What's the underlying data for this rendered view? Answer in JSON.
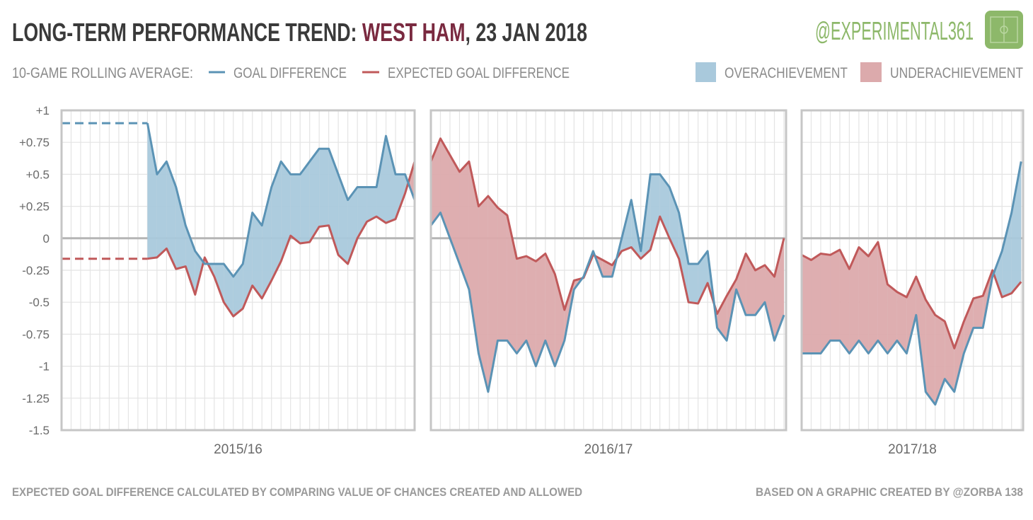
{
  "header": {
    "title_prefix": "LONG-TERM PERFORMANCE TREND: ",
    "team": "WEST HAM",
    "title_suffix": ", 23 JAN 2018",
    "handle": "@EXPERIMENTAL361"
  },
  "legend": {
    "intro": "10-GAME ROLLING AVERAGE:",
    "gd": "GOAL DIFFERENCE",
    "xgd": "EXPECTED GOAL DIFFERENCE",
    "over": "OVERACHIEVEMENT",
    "under": "UNDERACHIEVEMENT"
  },
  "footer": {
    "left": "EXPECTED GOAL DIFFERENCE CALCULATED BY COMPARING VALUE OF CHANCES CREATED AND ALLOWED",
    "right": "BASED ON A GRAPHIC CREATED BY @ZORBA 138"
  },
  "colors": {
    "gd_line": "#5b93b5",
    "over_fill": "#a9c9dc",
    "xgd_line": "#c0595a",
    "under_fill": "#dcaaac",
    "team": "#7a2a40",
    "handle": "#8db86a"
  },
  "chart_data": {
    "type": "line",
    "title": "Long-term performance trend: West Ham, 23 Jan 2018",
    "ylabel": "10-game rolling average",
    "ylim": [
      -1.5,
      1
    ],
    "yticks": [
      "+1",
      "+0.75",
      "+0.5",
      "+0.25",
      "0",
      "-0.25",
      "-0.5",
      "-0.75",
      "-1",
      "-1.25",
      "-1.5"
    ],
    "ytick_values": [
      1,
      0.75,
      0.5,
      0.25,
      0,
      -0.25,
      -0.5,
      -0.75,
      -1,
      -1.25,
      -1.5
    ],
    "grid": true,
    "legend_placement": "top",
    "panels": [
      {
        "season": "2015/16",
        "games": 38,
        "start_game": 10,
        "placeholder": {
          "gd": 0.9,
          "xgd": -0.16
        },
        "gd": [
          0.9,
          0.5,
          0.6,
          0.4,
          0.1,
          -0.1,
          -0.2,
          -0.2,
          -0.2,
          -0.3,
          -0.2,
          0.2,
          0.1,
          0.4,
          0.6,
          0.5,
          0.5,
          0.6,
          0.7,
          0.7,
          0.5,
          0.3,
          0.4,
          0.4,
          0.4,
          0.8,
          0.5,
          0.5,
          0.3
        ],
        "xgd": [
          -0.16,
          -0.15,
          -0.08,
          -0.24,
          -0.22,
          -0.44,
          -0.15,
          -0.3,
          -0.5,
          -0.61,
          -0.55,
          -0.37,
          -0.47,
          -0.33,
          -0.18,
          0.02,
          -0.04,
          -0.03,
          0.09,
          0.1,
          -0.13,
          -0.2,
          0,
          0.13,
          0.17,
          0.12,
          0.15,
          0.35,
          0.6
        ]
      },
      {
        "season": "2016/17",
        "games": 38,
        "start_game": 1,
        "gd": [
          0.1,
          0.2,
          0,
          -0.2,
          -0.4,
          -0.9,
          -1.2,
          -0.8,
          -0.8,
          -0.9,
          -0.8,
          -1.0,
          -0.8,
          -1.0,
          -0.8,
          -0.4,
          -0.3,
          -0.1,
          -0.3,
          -0.3,
          0,
          0.3,
          -0.1,
          0.5,
          0.5,
          0.4,
          0.2,
          -0.2,
          -0.2,
          -0.1,
          -0.7,
          -0.8,
          -0.4,
          -0.6,
          -0.6,
          -0.5,
          -0.8,
          -0.6
        ],
        "xgd": [
          0.6,
          0.78,
          0.65,
          0.52,
          0.6,
          0.25,
          0.33,
          0.24,
          0.18,
          -0.16,
          -0.14,
          -0.18,
          -0.12,
          -0.28,
          -0.56,
          -0.33,
          -0.31,
          -0.13,
          -0.17,
          -0.21,
          -0.1,
          -0.07,
          -0.16,
          -0.09,
          0.17,
          0,
          -0.16,
          -0.5,
          -0.51,
          -0.35,
          -0.59,
          -0.45,
          -0.32,
          -0.12,
          -0.25,
          -0.21,
          -0.3,
          0
        ]
      },
      {
        "season": "2017/18",
        "games": 24,
        "start_game": 1,
        "gd": [
          -0.9,
          -0.9,
          -0.9,
          -0.8,
          -0.8,
          -0.9,
          -0.8,
          -0.9,
          -0.8,
          -0.9,
          -0.8,
          -0.9,
          -0.6,
          -1.2,
          -1.3,
          -1.1,
          -1.2,
          -0.9,
          -0.7,
          -0.7,
          -0.3,
          -0.1,
          0.2,
          0.6
        ],
        "xgd": [
          -0.13,
          -0.17,
          -0.12,
          -0.13,
          -0.09,
          -0.24,
          -0.07,
          -0.14,
          -0.03,
          -0.36,
          -0.42,
          -0.46,
          -0.3,
          -0.48,
          -0.6,
          -0.65,
          -0.86,
          -0.65,
          -0.47,
          -0.45,
          -0.25,
          -0.46,
          -0.43,
          -0.34
        ]
      }
    ]
  }
}
